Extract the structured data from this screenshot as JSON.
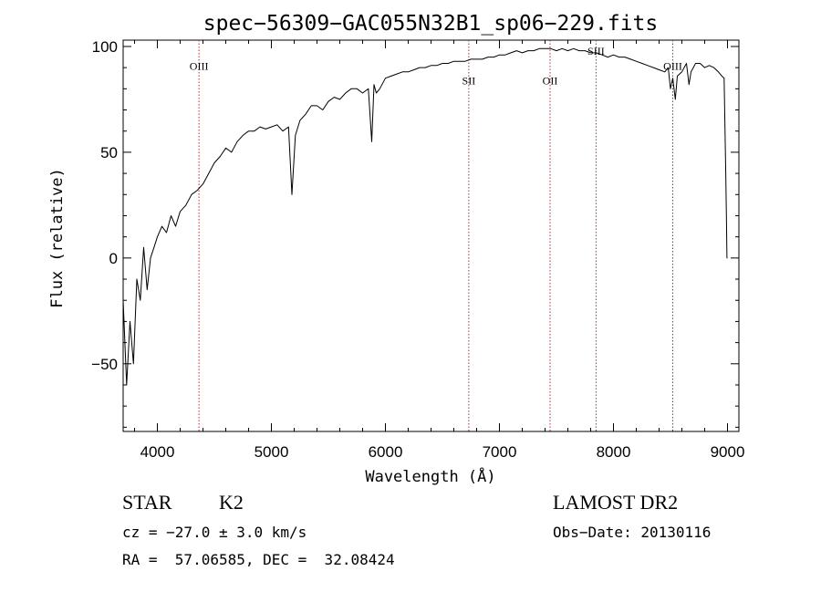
{
  "chart_data": {
    "type": "line",
    "title": "spec−56309−GAC055N32B1_sp06−229.fits",
    "xlabel": "Wavelength (Å)",
    "ylabel": "Flux (relative)",
    "xlim": [
      3700,
      9100
    ],
    "ylim": [
      -82,
      103
    ],
    "xticks": [
      4000,
      5000,
      6000,
      7000,
      8000,
      9000
    ],
    "yticks": [
      -50,
      0,
      50,
      100
    ],
    "ytick_labels": [
      "−50",
      "0",
      "50",
      "100"
    ],
    "grid": false,
    "lines": [
      {
        "label": "OIII",
        "x": 4365,
        "label_y": 89
      },
      {
        "label": "SII",
        "x": 6731,
        "label_y": 82
      },
      {
        "label": "OII",
        "x": 7444,
        "label_y": 82
      },
      {
        "label": "SIII",
        "x": 7847,
        "label_y": 96
      },
      {
        "label": "OIII",
        "x": 8520,
        "label_y": 89
      }
    ],
    "series": [
      {
        "color": "#000000",
        "x": [
          3700,
          3730,
          3760,
          3790,
          3820,
          3850,
          3880,
          3910,
          3940,
          3970,
          4000,
          4040,
          4080,
          4120,
          4160,
          4200,
          4250,
          4300,
          4350,
          4400,
          4450,
          4500,
          4550,
          4600,
          4650,
          4700,
          4750,
          4800,
          4850,
          4900,
          4950,
          5000,
          5050,
          5100,
          5150,
          5180,
          5210,
          5250,
          5300,
          5350,
          5400,
          5450,
          5500,
          5550,
          5600,
          5650,
          5700,
          5750,
          5800,
          5850,
          5880,
          5900,
          5920,
          5950,
          6000,
          6050,
          6100,
          6150,
          6200,
          6250,
          6300,
          6350,
          6400,
          6450,
          6500,
          6550,
          6600,
          6650,
          6700,
          6750,
          6800,
          6850,
          6900,
          6950,
          7000,
          7050,
          7100,
          7150,
          7200,
          7250,
          7300,
          7350,
          7400,
          7450,
          7500,
          7550,
          7600,
          7650,
          7700,
          7750,
          7800,
          7850,
          7900,
          7950,
          8000,
          8050,
          8100,
          8150,
          8200,
          8250,
          8300,
          8350,
          8400,
          8450,
          8480,
          8500,
          8520,
          8542,
          8560,
          8600,
          8640,
          8662,
          8680,
          8720,
          8760,
          8800,
          8840,
          8880,
          8920,
          8950,
          8970,
          8985,
          8990,
          8995,
          9000
        ],
        "y": [
          -20,
          -60,
          -30,
          -50,
          -10,
          -20,
          5,
          -15,
          0,
          5,
          10,
          15,
          12,
          20,
          15,
          22,
          25,
          30,
          32,
          35,
          40,
          45,
          48,
          52,
          50,
          55,
          58,
          60,
          60,
          62,
          61,
          62,
          63,
          60,
          62,
          30,
          58,
          65,
          68,
          72,
          72,
          70,
          74,
          76,
          75,
          78,
          80,
          80,
          78,
          80,
          55,
          82,
          78,
          80,
          85,
          86,
          87,
          88,
          88,
          89,
          90,
          90,
          91,
          91,
          92,
          92,
          93,
          93,
          93,
          94,
          94,
          94,
          95,
          95,
          96,
          96,
          97,
          98,
          97,
          98,
          98,
          99,
          99,
          99,
          98,
          99,
          98,
          99,
          98,
          98,
          97,
          97,
          96,
          95,
          96,
          95,
          95,
          94,
          93,
          92,
          91,
          90,
          89,
          88,
          90,
          80,
          85,
          75,
          86,
          88,
          92,
          82,
          88,
          92,
          92,
          90,
          91,
          90,
          88,
          86,
          85,
          40,
          20,
          0,
          0
        ]
      }
    ]
  },
  "info": {
    "class_label": "STAR",
    "subclass_label": "K2",
    "survey_label": "LAMOST DR2",
    "cz_text": "cz = −27.0 ± 3.0 km/s",
    "obsdate_text": "Obs−Date: 20130116",
    "radec_text": "RA =  57.06585, DEC =  32.08424"
  }
}
